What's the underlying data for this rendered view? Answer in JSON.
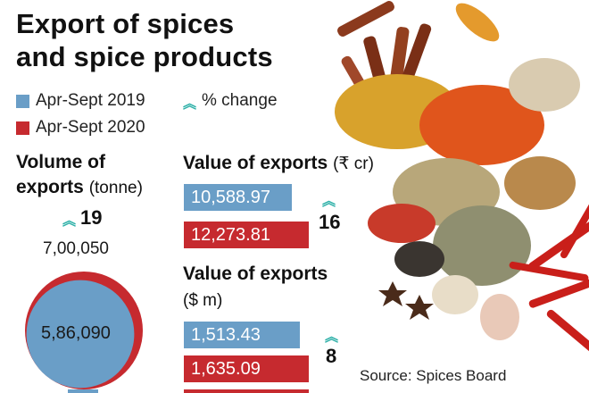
{
  "title_line1": "Export of spices",
  "title_line2": "and spice products",
  "legend": {
    "series1": "Apr-Sept 2019",
    "series2": "Apr-Sept 2020",
    "change": "% change",
    "color1": "#6a9ec7",
    "color2": "#c62a2f",
    "change_color": "#2eb0a8",
    "change_icon": "double-chevron-up-icon"
  },
  "chart_data": [
    {
      "type": "pie",
      "title_line1": "Volume of",
      "title_line2": "exports",
      "unit": "(tonne)",
      "series": [
        {
          "name": "Apr-Sept 2019",
          "value_label": "5,86,090",
          "value": 586090
        },
        {
          "name": "Apr-Sept 2020",
          "value_label": "7,00,050",
          "value": 700050
        }
      ],
      "pct_change": "19"
    },
    {
      "type": "bar",
      "title": "Value of exports",
      "unit": "(₹ cr)",
      "series": [
        {
          "name": "Apr-Sept 2019",
          "value_label": "10,588.97",
          "value": 10588.97
        },
        {
          "name": "Apr-Sept 2020",
          "value_label": "12,273.81",
          "value": 12273.81
        }
      ],
      "pct_change": "16"
    },
    {
      "type": "bar",
      "title": "Value of exports",
      "unit": "($ m)",
      "series": [
        {
          "name": "Apr-Sept 2019",
          "value_label": "1,513.43",
          "value": 1513.43
        },
        {
          "name": "Apr-Sept 2020",
          "value_label": "1,635.09",
          "value": 1635.09
        }
      ],
      "pct_change": "8"
    }
  ],
  "source": "Source: Spices Board"
}
